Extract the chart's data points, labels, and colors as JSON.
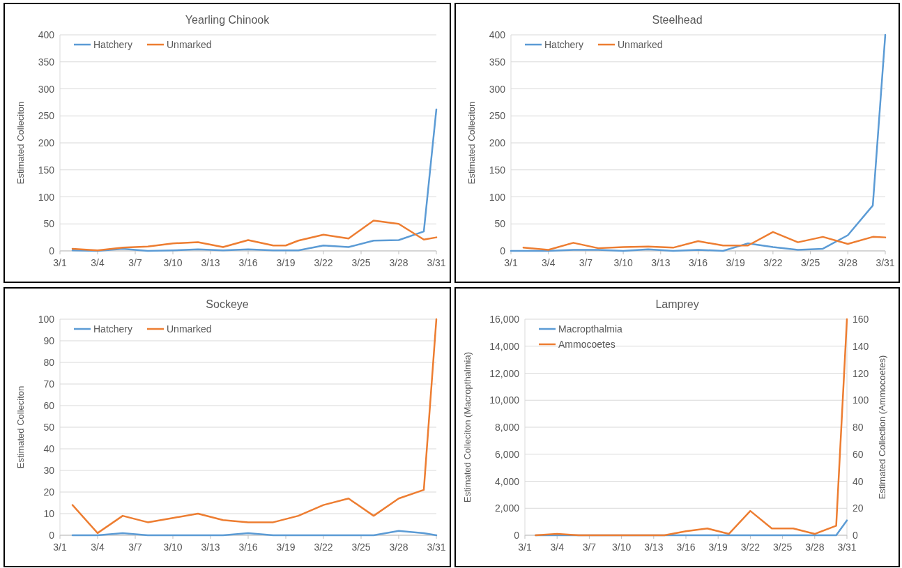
{
  "chart_data": [
    {
      "type": "line",
      "title": "Yearling Chinook",
      "ylabel": "Estimated Colleciton",
      "grid": "y",
      "legend": "top left",
      "line_style": "solid",
      "marker": "none",
      "x": [
        "--03-02",
        "--03-04",
        "--03-06",
        "--03-08",
        "--03-10",
        "--03-12",
        "--03-14",
        "--03-16",
        "--03-18",
        "--03-19",
        "--03-20",
        "--03-22",
        "--03-24",
        "--03-26",
        "--03-28",
        "--03-30",
        "--03-31"
      ],
      "xlim": [
        "--03-01",
        "--03-31"
      ],
      "xticks": [
        {
          "value": "--03-01",
          "label": "3/1"
        },
        {
          "value": "--03-04",
          "label": "3/4"
        },
        {
          "value": "--03-07",
          "label": "3/7"
        },
        {
          "value": "--03-10",
          "label": "3/10"
        },
        {
          "value": "--03-13",
          "label": "3/13"
        },
        {
          "value": "--03-16",
          "label": "3/16"
        },
        {
          "value": "--03-19",
          "label": "3/19"
        },
        {
          "value": "--03-22",
          "label": "3/22"
        },
        {
          "value": "--03-25",
          "label": "3/25"
        },
        {
          "value": "--03-28",
          "label": "3/28"
        },
        {
          "value": "--03-31",
          "label": "3/31"
        }
      ],
      "ylim": [
        0,
        400
      ],
      "yticks": [
        0,
        50,
        100,
        150,
        200,
        250,
        300,
        350,
        400
      ],
      "series": [
        {
          "name": "Hatchery",
          "color": "#5b9bd5",
          "values": [
            1,
            0,
            4,
            0,
            1,
            3,
            1,
            3,
            1,
            1,
            1,
            10,
            7,
            19,
            20,
            36,
            262
          ]
        },
        {
          "name": "Unmarked",
          "color": "#ed7d31",
          "values": [
            4,
            1,
            6,
            8,
            14,
            16,
            7,
            20,
            10,
            10,
            19,
            30,
            23,
            56,
            50,
            21,
            25
          ]
        }
      ]
    },
    {
      "type": "line",
      "title": "Steelhead",
      "ylabel": "Estimated Colleciton",
      "grid": "y",
      "legend": "top left",
      "line_style": "solid",
      "marker": "none",
      "x": [
        "--03-01",
        "--03-02",
        "--03-04",
        "--03-06",
        "--03-08",
        "--03-10",
        "--03-12",
        "--03-14",
        "--03-16",
        "--03-18",
        "--03-20",
        "--03-22",
        "--03-24",
        "--03-26",
        "--03-28",
        "--03-30",
        "--03-31"
      ],
      "xlim": [
        "--03-01",
        "--03-31"
      ],
      "xticks": [
        {
          "value": "--03-01",
          "label": "3/1"
        },
        {
          "value": "--03-04",
          "label": "3/4"
        },
        {
          "value": "--03-07",
          "label": "3/7"
        },
        {
          "value": "--03-10",
          "label": "3/10"
        },
        {
          "value": "--03-13",
          "label": "3/13"
        },
        {
          "value": "--03-16",
          "label": "3/16"
        },
        {
          "value": "--03-19",
          "label": "3/19"
        },
        {
          "value": "--03-22",
          "label": "3/22"
        },
        {
          "value": "--03-25",
          "label": "3/25"
        },
        {
          "value": "--03-28",
          "label": "3/28"
        },
        {
          "value": "--03-31",
          "label": "3/31"
        }
      ],
      "ylim": [
        0,
        400
      ],
      "yticks": [
        0,
        50,
        100,
        150,
        200,
        250,
        300,
        350,
        400
      ],
      "series": [
        {
          "name": "Hatchery",
          "color": "#5b9bd5",
          "values": [
            0,
            0,
            0,
            2,
            2,
            0,
            3,
            0,
            2,
            0,
            14,
            7,
            2,
            4,
            29,
            84,
            400
          ]
        },
        {
          "name": "Unmarked",
          "color": "#ed7d31",
          "values": [
            null,
            6,
            2,
            15,
            5,
            7,
            8,
            6,
            18,
            10,
            10,
            35,
            16,
            26,
            13,
            26,
            25
          ]
        }
      ]
    },
    {
      "type": "line",
      "title": "Sockeye",
      "ylabel": "Estimated Colleciton",
      "grid": "y",
      "legend": "top left",
      "line_style": "solid",
      "marker": "none",
      "x": [
        "--03-02",
        "--03-04",
        "--03-06",
        "--03-08",
        "--03-10",
        "--03-12",
        "--03-14",
        "--03-16",
        "--03-18",
        "--03-20",
        "--03-22",
        "--03-24",
        "--03-26",
        "--03-28",
        "--03-30",
        "--03-31"
      ],
      "xlim": [
        "--03-01",
        "--03-31"
      ],
      "xticks": [
        {
          "value": "--03-01",
          "label": "3/1"
        },
        {
          "value": "--03-04",
          "label": "3/4"
        },
        {
          "value": "--03-07",
          "label": "3/7"
        },
        {
          "value": "--03-10",
          "label": "3/10"
        },
        {
          "value": "--03-13",
          "label": "3/13"
        },
        {
          "value": "--03-16",
          "label": "3/16"
        },
        {
          "value": "--03-19",
          "label": "3/19"
        },
        {
          "value": "--03-22",
          "label": "3/22"
        },
        {
          "value": "--03-25",
          "label": "3/25"
        },
        {
          "value": "--03-28",
          "label": "3/28"
        },
        {
          "value": "--03-31",
          "label": "3/31"
        }
      ],
      "ylim": [
        0,
        100
      ],
      "yticks": [
        0,
        10,
        20,
        30,
        40,
        50,
        60,
        70,
        80,
        90,
        100
      ],
      "series": [
        {
          "name": "Hatchery",
          "color": "#5b9bd5",
          "values": [
            0,
            0,
            1,
            0,
            0,
            0,
            0,
            1,
            0,
            0,
            0,
            0,
            0,
            2,
            1,
            0
          ]
        },
        {
          "name": "Unmarked",
          "color": "#ed7d31",
          "values": [
            14,
            1,
            9,
            6,
            8,
            10,
            7,
            6,
            6,
            9,
            14,
            17,
            9,
            17,
            21,
            100
          ]
        }
      ]
    },
    {
      "type": "line",
      "title": "Lamprey",
      "ylabel": "Estimated Colleciton (Macropthalmia)",
      "y2label": "Estimated Collection (Ammocoetes)",
      "grid": "y",
      "legend": "top left",
      "line_style": "solid",
      "marker": "none",
      "x": [
        "--03-02",
        "--03-04",
        "--03-06",
        "--03-08",
        "--03-10",
        "--03-12",
        "--03-14",
        "--03-16",
        "--03-18",
        "--03-20",
        "--03-22",
        "--03-24",
        "--03-26",
        "--03-28",
        "--03-30",
        "--03-31"
      ],
      "xlim": [
        "--03-01",
        "--03-31"
      ],
      "xticks": [
        {
          "value": "--03-01",
          "label": "3/1"
        },
        {
          "value": "--03-04",
          "label": "3/4"
        },
        {
          "value": "--03-07",
          "label": "3/7"
        },
        {
          "value": "--03-10",
          "label": "3/10"
        },
        {
          "value": "--03-13",
          "label": "3/13"
        },
        {
          "value": "--03-16",
          "label": "3/16"
        },
        {
          "value": "--03-19",
          "label": "3/19"
        },
        {
          "value": "--03-22",
          "label": "3/22"
        },
        {
          "value": "--03-25",
          "label": "3/25"
        },
        {
          "value": "--03-28",
          "label": "3/28"
        },
        {
          "value": "--03-31",
          "label": "3/31"
        }
      ],
      "ylim": [
        0,
        16000
      ],
      "yticks": [
        0,
        {
          "value": 2000,
          "label": "2,000"
        },
        {
          "value": 4000,
          "label": "4,000"
        },
        {
          "value": 6000,
          "label": "6,000"
        },
        {
          "value": 8000,
          "label": "8,000"
        },
        {
          "value": 10000,
          "label": "10,000"
        },
        {
          "value": 12000,
          "label": "12,000"
        },
        {
          "value": 14000,
          "label": "14,000"
        },
        {
          "value": 16000,
          "label": "16,000"
        }
      ],
      "y2lim": [
        0,
        160
      ],
      "y2ticks": [
        0,
        20,
        40,
        60,
        80,
        100,
        120,
        140,
        160
      ],
      "series": [
        {
          "name": "Macropthalmia",
          "color": "#5b9bd5",
          "values": [
            0,
            0,
            0,
            0,
            0,
            0,
            0,
            0,
            0,
            0,
            0,
            0,
            0,
            0,
            0,
            1100
          ]
        },
        {
          "name": "Ammocoetes",
          "color": "#ed7d31",
          "axis": "y2",
          "values": [
            0,
            1,
            0,
            0,
            0,
            0,
            0,
            3,
            5,
            1,
            18,
            5,
            5,
            1,
            7,
            160
          ]
        }
      ]
    }
  ]
}
